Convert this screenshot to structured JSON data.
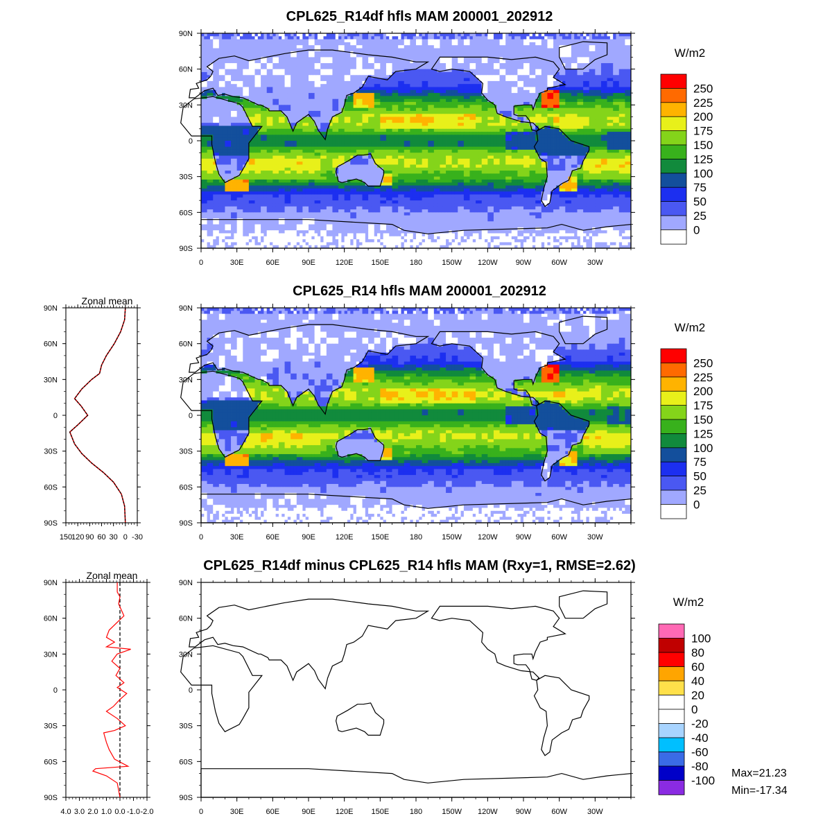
{
  "chart_data": [
    {
      "type": "heatmap",
      "title": "CPL625_R14df hfls MAM 200001_202912",
      "lat_ticks": [
        "90N",
        "60N",
        "30N",
        "0",
        "30S",
        "60S",
        "90S"
      ],
      "lon_ticks": [
        "0",
        "30E",
        "60E",
        "90E",
        "120E",
        "150E",
        "180",
        "150W",
        "120W",
        "90W",
        "60W",
        "30W"
      ],
      "colorbar": {
        "unit": "W/m2",
        "levels": [
          "250",
          "225",
          "200",
          "175",
          "150",
          "125",
          "100",
          "75",
          "50",
          "25",
          "0"
        ],
        "colors": [
          "#ffffff",
          "#a0a8ff",
          "#4a58f2",
          "#1c2ff0",
          "#134f9c",
          "#118a3c",
          "#38b11c",
          "#84d41a",
          "#e8f01a",
          "#ffb300",
          "#ff6a00",
          "#ff0000"
        ]
      }
    },
    {
      "type": "heatmap",
      "title": "CPL625_R14 hfls MAM 200001_202912",
      "lat_ticks": [
        "90N",
        "60N",
        "30N",
        "0",
        "30S",
        "60S",
        "90S"
      ],
      "lon_ticks": [
        "0",
        "30E",
        "60E",
        "90E",
        "120E",
        "150E",
        "180",
        "150W",
        "120W",
        "90W",
        "60W",
        "30W"
      ],
      "colorbar": {
        "unit": "W/m2",
        "levels": [
          "250",
          "225",
          "200",
          "175",
          "150",
          "125",
          "100",
          "75",
          "50",
          "25",
          "0"
        ],
        "colors": [
          "#ffffff",
          "#a0a8ff",
          "#4a58f2",
          "#1c2ff0",
          "#134f9c",
          "#118a3c",
          "#38b11c",
          "#84d41a",
          "#e8f01a",
          "#ffb300",
          "#ff6a00",
          "#ff0000"
        ]
      }
    },
    {
      "type": "heatmap",
      "title": "CPL625_R14df minus CPL625_R14 hfls MAM (Rxy=1, RMSE=2.62)",
      "lat_ticks": [
        "90N",
        "60N",
        "30N",
        "0",
        "30S",
        "60S",
        "90S"
      ],
      "lon_ticks": [
        "0",
        "30E",
        "60E",
        "90E",
        "120E",
        "150E",
        "180",
        "150W",
        "120W",
        "90W",
        "60W",
        "30W"
      ],
      "colorbar": {
        "unit": "W/m2",
        "levels": [
          "100",
          "80",
          "60",
          "40",
          "20",
          "0",
          "-20",
          "-40",
          "-60",
          "-80",
          "-100"
        ],
        "colors": [
          "#8a2be2",
          "#0000c8",
          "#3a6be6",
          "#00bfff",
          "#a8d4ff",
          "#ffffff",
          "#ffffff",
          "#ffe04a",
          "#ffa500",
          "#ff0000",
          "#c00000",
          "#ff69b4"
        ]
      },
      "max_label": "Max=21.23",
      "min_label": "Min=-17.34"
    },
    {
      "type": "line",
      "title": "Zonal mean",
      "x_ticks": [
        "150",
        "120",
        "90",
        "60",
        "30",
        "0",
        "-30"
      ],
      "y_ticks": [
        "90N",
        "60N",
        "30N",
        "0",
        "30S",
        "60S",
        "90S"
      ],
      "xlim": [
        150,
        -30
      ],
      "series": [
        {
          "points": [
            [
              0,
              90
            ],
            [
              2,
              80
            ],
            [
              12,
              70
            ],
            [
              28,
              60
            ],
            [
              48,
              50
            ],
            [
              60,
              42
            ],
            [
              65,
              35
            ],
            [
              85,
              30
            ],
            [
              110,
              22
            ],
            [
              128,
              14
            ],
            [
              112,
              8
            ],
            [
              95,
              0
            ],
            [
              120,
              -8
            ],
            [
              140,
              -14
            ],
            [
              128,
              -24
            ],
            [
              110,
              -32
            ],
            [
              85,
              -40
            ],
            [
              55,
              -48
            ],
            [
              30,
              -56
            ],
            [
              10,
              -66
            ],
            [
              2,
              -76
            ],
            [
              0,
              -90
            ]
          ]
        }
      ]
    },
    {
      "type": "line",
      "title": "Zonal mean",
      "x_ticks": [
        "4.0",
        "3.0",
        "2.0",
        "1.0",
        "0.0",
        "-1.0",
        "-2.0"
      ],
      "y_ticks": [
        "90N",
        "60N",
        "30N",
        "0",
        "30S",
        "60S",
        "90S"
      ],
      "xlim": [
        4,
        -2
      ],
      "series": [
        {
          "points": [
            [
              0.2,
              90
            ],
            [
              0.2,
              82
            ],
            [
              0,
              78
            ],
            [
              0.1,
              72
            ],
            [
              -0.3,
              62
            ],
            [
              0.8,
              50
            ],
            [
              1.0,
              44
            ],
            [
              0.4,
              40
            ],
            [
              1.0,
              36
            ],
            [
              -0.8,
              34
            ],
            [
              0.2,
              30
            ],
            [
              0.6,
              24
            ],
            [
              0,
              18
            ],
            [
              0.3,
              12
            ],
            [
              -0.3,
              6
            ],
            [
              0.2,
              2
            ],
            [
              -0.5,
              -3
            ],
            [
              0,
              -8
            ],
            [
              0.5,
              -14
            ],
            [
              1.0,
              -18
            ],
            [
              0.2,
              -24
            ],
            [
              -0.4,
              -30
            ],
            [
              0.4,
              -34
            ],
            [
              1.2,
              -36
            ],
            [
              1.0,
              -44
            ],
            [
              0.8,
              -50
            ],
            [
              0.4,
              -58
            ],
            [
              -0.6,
              -64
            ],
            [
              1.8,
              -66
            ],
            [
              2.0,
              -68
            ],
            [
              1.0,
              -72
            ],
            [
              0.2,
              -78
            ],
            [
              0,
              -90
            ]
          ]
        }
      ]
    }
  ]
}
